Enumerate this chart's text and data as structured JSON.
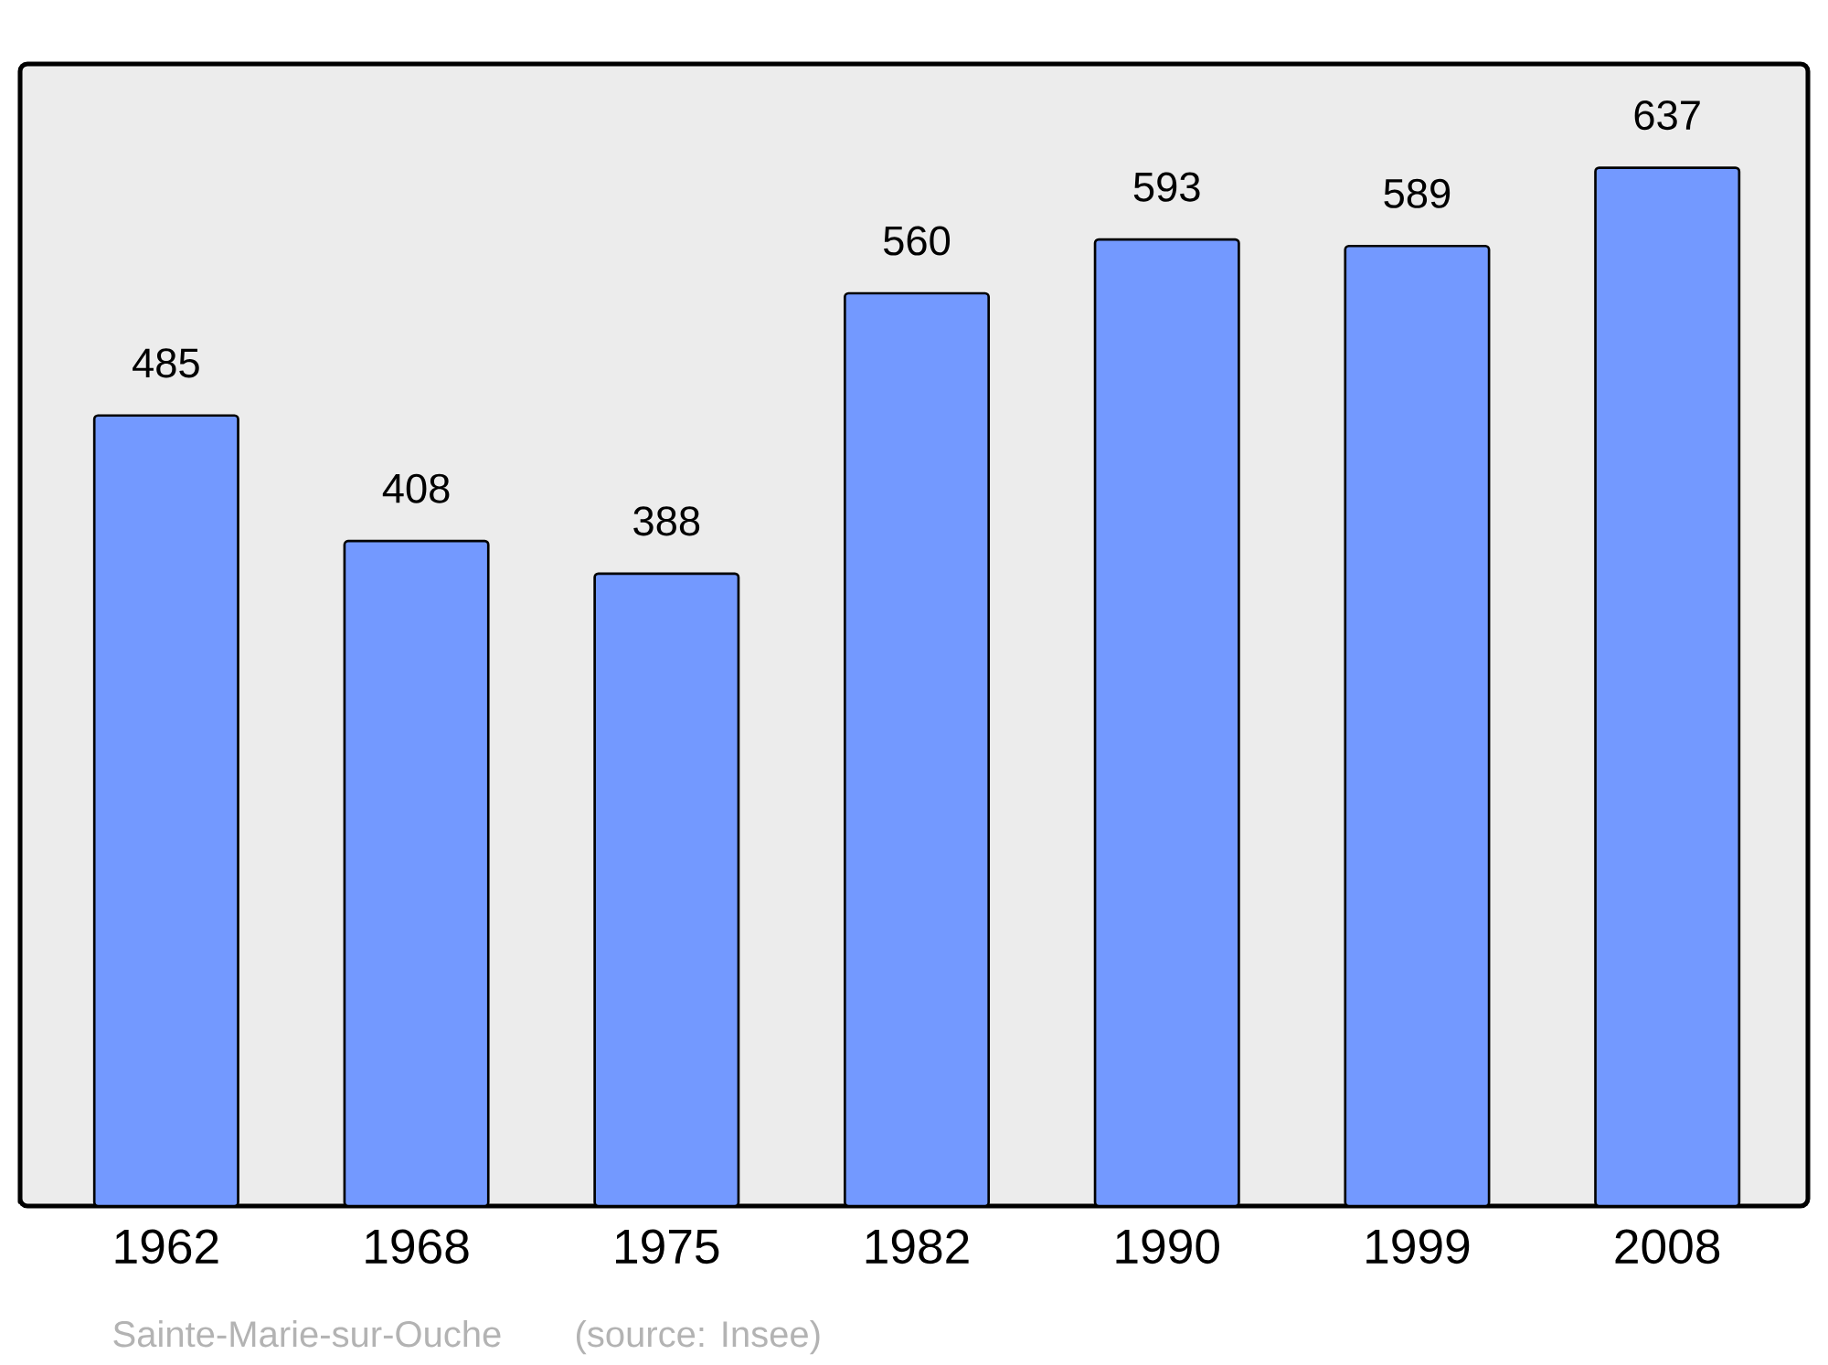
{
  "chart_data": {
    "type": "bar",
    "categories": [
      "1962",
      "1968",
      "1975",
      "1982",
      "1990",
      "1999",
      "2008"
    ],
    "values": [
      485,
      408,
      388,
      560,
      593,
      589,
      637
    ],
    "color": "#7399ff",
    "data_labels": true,
    "annotations": [
      "Sainte-Marie-sur-Ouche",
      "(source: Insee)"
    ]
  }
}
